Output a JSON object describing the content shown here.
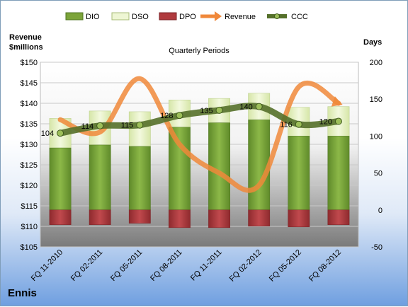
{
  "company": "Ennis",
  "chart_data": {
    "type": "bar",
    "title": "Quarterly Periods",
    "categories": [
      "FQ 11-2010",
      "FQ 02-2011",
      "FQ 05-2011",
      "FQ 08-2011",
      "FQ 11-2011",
      "FQ 02-2012",
      "FQ 05-2012",
      "FQ 08-2012"
    ],
    "y_left_label_line1": "Revenue",
    "y_left_label_line2": "$millions",
    "y_right_label": "Days",
    "y_left_range": [
      105,
      150
    ],
    "y_left_ticks": [
      "$105",
      "$110",
      "$115",
      "$120",
      "$125",
      "$130",
      "$135",
      "$140",
      "$145",
      "$150"
    ],
    "y_left_tick_values": [
      105,
      110,
      115,
      120,
      125,
      130,
      135,
      140,
      145,
      150
    ],
    "y_right_range": [
      -50,
      200
    ],
    "y_right_ticks": [
      "-50",
      "0",
      "50",
      "100",
      "150",
      "200"
    ],
    "y_right_tick_values": [
      -50,
      0,
      50,
      100,
      150,
      200
    ],
    "legend_placement": "top",
    "series": [
      {
        "name": "DIO",
        "type": "stacked-bar",
        "axis": "right",
        "color": "#7ca43a",
        "values": [
          84,
          88,
          86,
          112,
          118,
          122,
          100,
          100
        ]
      },
      {
        "name": "DSO",
        "type": "stacked-bar",
        "axis": "right",
        "color": "#e8f2c8",
        "values": [
          40,
          46,
          47,
          37,
          33,
          36,
          39,
          40
        ]
      },
      {
        "name": "DPO",
        "type": "bar-negative",
        "axis": "right",
        "color": "#b03a3e",
        "values": [
          -20,
          -20,
          -18,
          -24,
          -24,
          -22,
          -23,
          -20
        ]
      },
      {
        "name": "Revenue",
        "type": "line",
        "axis": "left",
        "color": "#f0883a",
        "values": [
          136,
          133,
          146,
          130,
          123,
          120,
          144,
          140
        ]
      },
      {
        "name": "CCC",
        "type": "line",
        "axis": "right",
        "color": "#55702a",
        "values": [
          104,
          114,
          115,
          128,
          135,
          140,
          116,
          120
        ]
      }
    ],
    "ccc_labels": [
      "104",
      "114",
      "115",
      "128",
      "135",
      "140",
      "116",
      "120"
    ]
  }
}
